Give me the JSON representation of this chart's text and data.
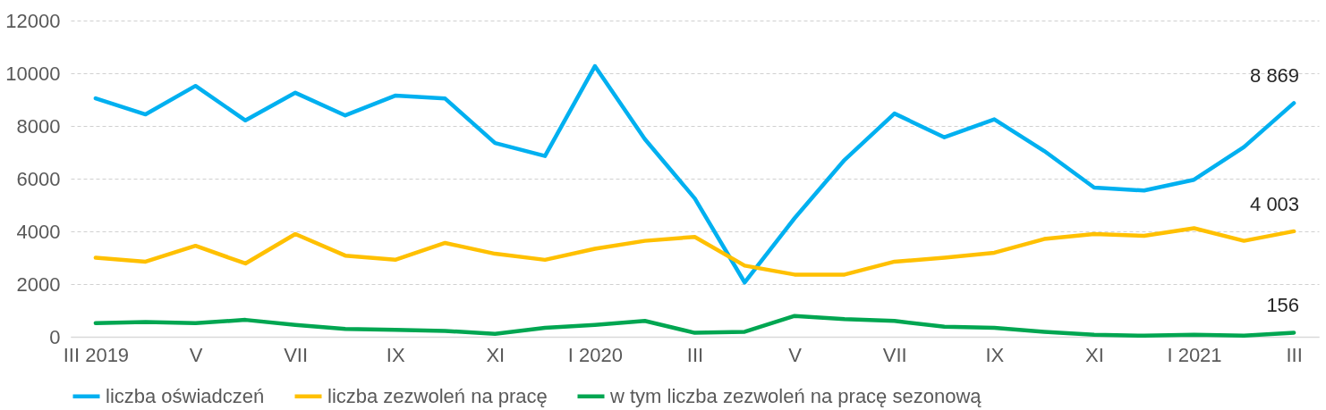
{
  "chart_data": {
    "type": "line",
    "categories": [
      "III 2019",
      null,
      "V",
      null,
      "VII",
      null,
      "IX",
      null,
      "XI",
      null,
      "I 2020",
      null,
      "III",
      null,
      "V",
      null,
      "VII",
      null,
      "IX",
      null,
      "XI",
      null,
      "I 2021",
      null,
      "III"
    ],
    "ylim": [
      0,
      12000
    ],
    "yticks": [
      0,
      2000,
      4000,
      6000,
      8000,
      10000,
      12000
    ],
    "grid": "y",
    "legend": "bottom",
    "line_style": "solid",
    "marker": "none",
    "series": [
      {
        "name": "liczba oświadczeń",
        "color": "#00b0f0",
        "values": [
          9050,
          8440,
          9520,
          8210,
          9260,
          8400,
          9150,
          9040,
          7350,
          6860,
          10270,
          7500,
          5250,
          2060,
          4500,
          6710,
          8470,
          7570,
          8250,
          7050,
          5660,
          5550,
          5960,
          7200,
          8869
        ],
        "value_labels": [
          null,
          null,
          null,
          null,
          null,
          null,
          null,
          null,
          null,
          null,
          null,
          null,
          null,
          null,
          null,
          null,
          null,
          null,
          null,
          null,
          null,
          null,
          null,
          null,
          "8 869"
        ]
      },
      {
        "name": "liczba zezwoleń na pracę",
        "color": "#ffc000",
        "values": [
          3000,
          2850,
          3450,
          2780,
          3900,
          3080,
          2920,
          3560,
          3150,
          2920,
          3340,
          3640,
          3790,
          2700,
          2360,
          2360,
          2850,
          3000,
          3190,
          3710,
          3900,
          3830,
          4120,
          3640,
          4003
        ],
        "value_labels": [
          null,
          null,
          null,
          null,
          null,
          null,
          null,
          null,
          null,
          null,
          null,
          null,
          null,
          null,
          null,
          null,
          null,
          null,
          null,
          null,
          null,
          null,
          null,
          null,
          "4 003"
        ]
      },
      {
        "name": "w tym liczba zezwoleń na pracę sezonową",
        "color": "#00a651",
        "values": [
          520,
          560,
          520,
          640,
          450,
          300,
          260,
          220,
          110,
          340,
          450,
          600,
          150,
          190,
          790,
          670,
          600,
          380,
          340,
          190,
          80,
          40,
          80,
          40,
          156
        ],
        "value_labels": [
          null,
          null,
          null,
          null,
          null,
          null,
          null,
          null,
          null,
          null,
          null,
          null,
          null,
          null,
          null,
          null,
          null,
          null,
          null,
          null,
          null,
          null,
          null,
          null,
          "156"
        ]
      }
    ]
  }
}
